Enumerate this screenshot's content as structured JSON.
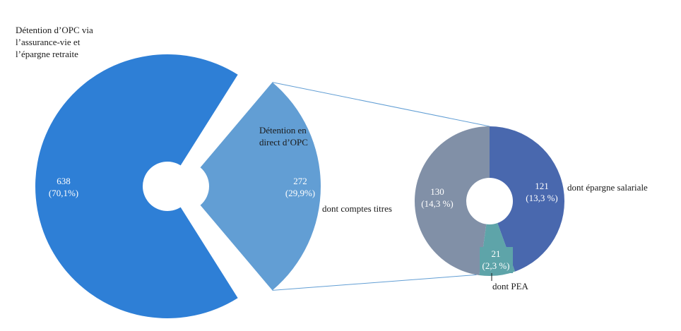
{
  "colors": {
    "assurance_vie": "#2e7fd6",
    "direct": "#629ed4",
    "comptes_titres": "#8190a7",
    "epargne_salariale": "#4968ae",
    "pea": "#5ea4a9",
    "connector": "#629ed4",
    "label_light": "#ffffff",
    "label_dark": "#1a1a1a"
  },
  "chart_data": [
    {
      "type": "pie",
      "variant": "exploded-donut",
      "slices": [
        {
          "label": "Détention d'OPC via l'assurance-vie et l'épargne retraite",
          "value": 638,
          "value_text": "638",
          "percent_text": "(70,1%)"
        },
        {
          "label": "Détention en direct d'OPC",
          "value": 272,
          "value_text": "272",
          "percent_text": "(29,9%)"
        }
      ],
      "annotations": {
        "assurance_vie_lines": [
          "Détention d’OPC via",
          "l’assurance-vie et",
          "l’épargne retraite"
        ],
        "direct_lines": [
          "Détention en",
          "direct d’OPC"
        ]
      }
    },
    {
      "type": "pie",
      "variant": "donut-breakdown",
      "parent": "Détention en direct d'OPC",
      "slices": [
        {
          "label": "dont épargne salariale",
          "value": 121,
          "value_text": "121",
          "percent_text": "(13,3 %)"
        },
        {
          "label": "dont PEA",
          "value": 21,
          "value_text": "21",
          "percent_text": "(2,3 %)"
        },
        {
          "label": "dont comptes titres",
          "value": 130,
          "value_text": "130",
          "percent_text": "(14,3 %)"
        }
      ]
    }
  ]
}
